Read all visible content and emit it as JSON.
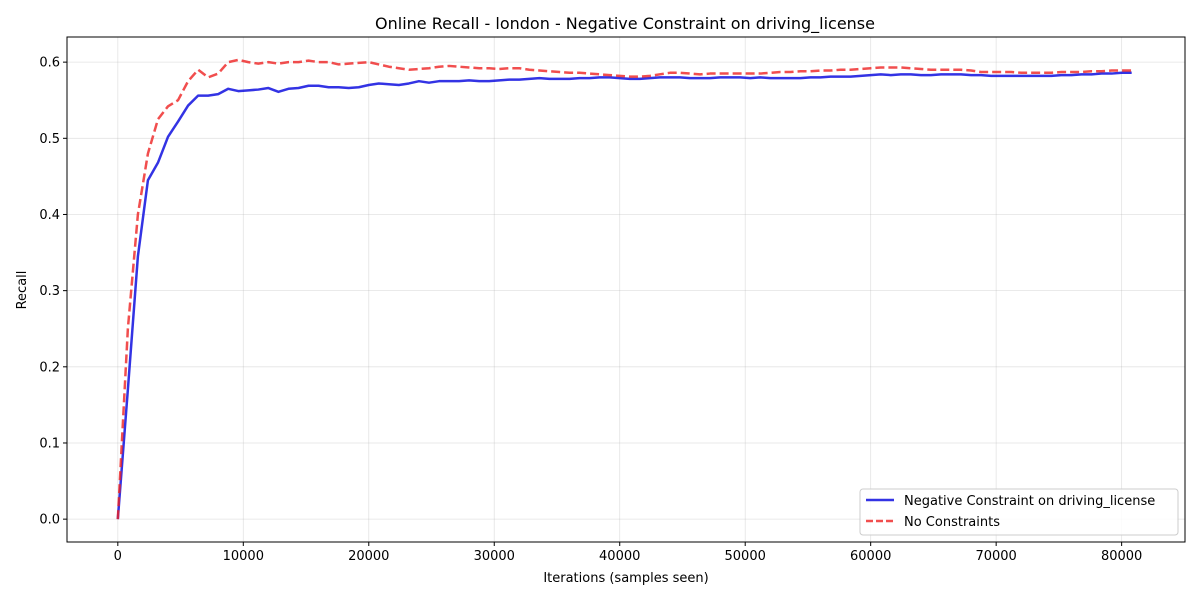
{
  "chart_data": {
    "type": "line",
    "title": "Online Recall - london - Negative Constraint on driving_license",
    "xlabel": "Iterations (samples seen)",
    "ylabel": "Recall",
    "xlim": [
      -4050,
      85050
    ],
    "ylim": [
      -0.03,
      0.633
    ],
    "xticks": [
      0,
      10000,
      20000,
      30000,
      40000,
      50000,
      60000,
      70000,
      80000
    ],
    "yticks": [
      0.0,
      0.1,
      0.2,
      0.3,
      0.4,
      0.5,
      0.6
    ],
    "xtick_labels": [
      "0",
      "10000",
      "20000",
      "30000",
      "40000",
      "50000",
      "60000",
      "70000",
      "80000"
    ],
    "ytick_labels": [
      "0.0",
      "0.1",
      "0.2",
      "0.3",
      "0.4",
      "0.5",
      "0.6"
    ],
    "grid": true,
    "legend_position": "bottom-right",
    "series": [
      {
        "name": "Negative Constraint on driving_license",
        "color": "#0000dd",
        "style": "solid",
        "x": [
          0,
          800,
          1600,
          2400,
          3200,
          4000,
          4800,
          5600,
          6400,
          7200,
          8000,
          8800,
          9600,
          10400,
          11200,
          12000,
          12800,
          13600,
          14400,
          15200,
          16000,
          16800,
          17600,
          18400,
          19200,
          20000,
          20800,
          21600,
          22400,
          23200,
          24000,
          24800,
          25600,
          26400,
          27200,
          28000,
          28800,
          29600,
          30400,
          31200,
          32000,
          32800,
          33600,
          34400,
          35200,
          36000,
          36800,
          37600,
          38400,
          39200,
          40000,
          40800,
          41600,
          42400,
          43200,
          44000,
          44800,
          45600,
          46400,
          47200,
          48000,
          48800,
          49600,
          50400,
          51200,
          52000,
          52800,
          53600,
          54400,
          55200,
          56000,
          56800,
          57600,
          58400,
          59200,
          60000,
          60800,
          61600,
          62400,
          63200,
          64000,
          64800,
          65600,
          66400,
          67200,
          68000,
          68800,
          69600,
          70400,
          71200,
          72000,
          72800,
          73600,
          74400,
          75200,
          76000,
          76800,
          77600,
          78400,
          79200,
          80000,
          80800
        ],
        "y": [
          0.0,
          0.17,
          0.345,
          0.445,
          0.468,
          0.502,
          0.522,
          0.543,
          0.556,
          0.556,
          0.558,
          0.565,
          0.562,
          0.563,
          0.564,
          0.566,
          0.561,
          0.565,
          0.566,
          0.569,
          0.569,
          0.567,
          0.567,
          0.566,
          0.567,
          0.57,
          0.572,
          0.571,
          0.57,
          0.572,
          0.575,
          0.573,
          0.575,
          0.575,
          0.575,
          0.576,
          0.575,
          0.575,
          0.576,
          0.577,
          0.577,
          0.578,
          0.579,
          0.578,
          0.578,
          0.578,
          0.579,
          0.579,
          0.58,
          0.58,
          0.579,
          0.578,
          0.578,
          0.579,
          0.58,
          0.58,
          0.58,
          0.579,
          0.579,
          0.579,
          0.58,
          0.58,
          0.58,
          0.579,
          0.58,
          0.579,
          0.579,
          0.579,
          0.579,
          0.58,
          0.58,
          0.581,
          0.581,
          0.581,
          0.582,
          0.583,
          0.584,
          0.583,
          0.584,
          0.584,
          0.583,
          0.583,
          0.584,
          0.584,
          0.584,
          0.583,
          0.583,
          0.582,
          0.582,
          0.582,
          0.582,
          0.582,
          0.582,
          0.582,
          0.583,
          0.583,
          0.584,
          0.584,
          0.585,
          0.585,
          0.586,
          0.586
        ]
      },
      {
        "name": "No Constraints",
        "color": "#ee2222",
        "style": "dashed",
        "x": [
          0,
          800,
          1600,
          2400,
          3200,
          4000,
          4800,
          5600,
          6400,
          7200,
          8000,
          8800,
          9600,
          10400,
          11200,
          12000,
          12800,
          13600,
          14400,
          15200,
          16000,
          16800,
          17600,
          18400,
          19200,
          20000,
          20800,
          21600,
          22400,
          23200,
          24000,
          24800,
          25600,
          26400,
          27200,
          28000,
          28800,
          29600,
          30400,
          31200,
          32000,
          32800,
          33600,
          34400,
          35200,
          36000,
          36800,
          37600,
          38400,
          39200,
          40000,
          40800,
          41600,
          42400,
          43200,
          44000,
          44800,
          45600,
          46400,
          47200,
          48000,
          48800,
          49600,
          50400,
          51200,
          52000,
          52800,
          53600,
          54400,
          55200,
          56000,
          56800,
          57600,
          58400,
          59200,
          60000,
          60800,
          61600,
          62400,
          63200,
          64000,
          64800,
          65600,
          66400,
          67200,
          68000,
          68800,
          69600,
          70400,
          71200,
          72000,
          72800,
          73600,
          74400,
          75200,
          76000,
          76800,
          77600,
          78400,
          79200,
          80000,
          80800
        ],
        "y": [
          0.0,
          0.25,
          0.4,
          0.48,
          0.525,
          0.542,
          0.55,
          0.575,
          0.59,
          0.58,
          0.585,
          0.6,
          0.603,
          0.6,
          0.598,
          0.6,
          0.598,
          0.6,
          0.6,
          0.602,
          0.6,
          0.6,
          0.597,
          0.598,
          0.599,
          0.6,
          0.597,
          0.594,
          0.592,
          0.59,
          0.591,
          0.592,
          0.594,
          0.595,
          0.594,
          0.593,
          0.592,
          0.592,
          0.591,
          0.592,
          0.592,
          0.59,
          0.589,
          0.588,
          0.587,
          0.586,
          0.586,
          0.585,
          0.584,
          0.583,
          0.582,
          0.581,
          0.581,
          0.582,
          0.584,
          0.586,
          0.586,
          0.585,
          0.584,
          0.585,
          0.585,
          0.585,
          0.585,
          0.585,
          0.585,
          0.586,
          0.587,
          0.587,
          0.588,
          0.588,
          0.589,
          0.589,
          0.59,
          0.59,
          0.591,
          0.592,
          0.593,
          0.593,
          0.593,
          0.592,
          0.591,
          0.59,
          0.59,
          0.59,
          0.59,
          0.589,
          0.587,
          0.587,
          0.587,
          0.587,
          0.586,
          0.586,
          0.586,
          0.586,
          0.587,
          0.587,
          0.587,
          0.588,
          0.588,
          0.589,
          0.589,
          0.589
        ]
      }
    ]
  }
}
